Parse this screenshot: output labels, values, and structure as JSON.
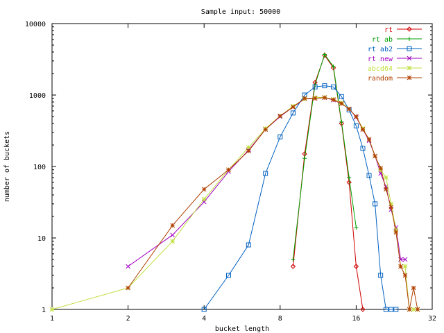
{
  "chart_data": {
    "type": "line",
    "title": "Sample input: 50000",
    "xlabel": "bucket length",
    "ylabel": "number of buckets",
    "xscale": "log2",
    "yscale": "log10",
    "xlim": [
      1,
      32
    ],
    "ylim": [
      1,
      10000
    ],
    "xticks": [
      1,
      2,
      4,
      8,
      16,
      32
    ],
    "xtick_labels": [
      "1",
      "2",
      "4",
      "8",
      "16",
      "32"
    ],
    "yticks": [
      1,
      10,
      100,
      1000,
      10000
    ],
    "ytick_labels": [
      "1",
      "10",
      "100",
      "1000",
      "10000"
    ],
    "grid": false,
    "legend_position": "top-right",
    "series": [
      {
        "name": "rt",
        "color": "#d00000",
        "marker": "diamond",
        "points": [
          [
            9,
            4
          ],
          [
            10,
            150
          ],
          [
            11,
            1500
          ],
          [
            12,
            3600
          ],
          [
            13,
            2400
          ],
          [
            14,
            400
          ],
          [
            15,
            60
          ],
          [
            16,
            4
          ],
          [
            17,
            1
          ]
        ]
      },
      {
        "name": "rt ab",
        "color": "#00a000",
        "marker": "plus",
        "points": [
          [
            9,
            5
          ],
          [
            10,
            130
          ],
          [
            11,
            1400
          ],
          [
            12,
            3700
          ],
          [
            13,
            2500
          ],
          [
            14,
            420
          ],
          [
            15,
            70
          ],
          [
            16,
            14
          ]
        ]
      },
      {
        "name": "rt ab2",
        "color": "#0060c0",
        "marker": "square",
        "points": [
          [
            4,
            1
          ],
          [
            5,
            3
          ],
          [
            6,
            8
          ],
          [
            7,
            80
          ],
          [
            8,
            260
          ],
          [
            9,
            560
          ],
          [
            10,
            1000
          ],
          [
            11,
            1300
          ],
          [
            12,
            1350
          ],
          [
            13,
            1300
          ],
          [
            14,
            950
          ],
          [
            15,
            620
          ],
          [
            16,
            370
          ],
          [
            17,
            180
          ],
          [
            18,
            75
          ],
          [
            19,
            30
          ],
          [
            20,
            3
          ],
          [
            21,
            1
          ],
          [
            22,
            1
          ],
          [
            23,
            1
          ]
        ]
      },
      {
        "name": "rt new",
        "color": "#a000c0",
        "marker": "cross",
        "points": [
          [
            2,
            4
          ],
          [
            3,
            11
          ],
          [
            4,
            32
          ],
          [
            5,
            85
          ],
          [
            6,
            170
          ],
          [
            7,
            330
          ],
          [
            8,
            500
          ],
          [
            9,
            680
          ],
          [
            10,
            880
          ],
          [
            11,
            900
          ],
          [
            12,
            920
          ],
          [
            13,
            850
          ],
          [
            14,
            760
          ],
          [
            15,
            640
          ],
          [
            16,
            490
          ],
          [
            17,
            330
          ],
          [
            18,
            230
          ],
          [
            19,
            140
          ],
          [
            20,
            80
          ],
          [
            21,
            52
          ],
          [
            22,
            25
          ],
          [
            23,
            14
          ],
          [
            24,
            5
          ],
          [
            25,
            5
          ]
        ]
      },
      {
        "name": "abcd64",
        "color": "#c0e040",
        "marker": "star",
        "points": [
          [
            1,
            1
          ],
          [
            2,
            2
          ],
          [
            3,
            9
          ],
          [
            4,
            35
          ],
          [
            5,
            90
          ],
          [
            6,
            185
          ],
          [
            7,
            340
          ],
          [
            8,
            510
          ],
          [
            9,
            700
          ],
          [
            10,
            880
          ],
          [
            11,
            920
          ],
          [
            12,
            930
          ],
          [
            13,
            870
          ],
          [
            14,
            780
          ],
          [
            15,
            640
          ],
          [
            16,
            500
          ],
          [
            17,
            340
          ],
          [
            18,
            240
          ],
          [
            19,
            140
          ],
          [
            20,
            90
          ],
          [
            21,
            70
          ],
          [
            22,
            30
          ],
          [
            23,
            13
          ],
          [
            24,
            4
          ],
          [
            25,
            4
          ],
          [
            26,
            1
          ],
          [
            27,
            1
          ],
          [
            28,
            1
          ]
        ]
      },
      {
        "name": "random",
        "color": "#b04000",
        "marker": "asterisk",
        "points": [
          [
            2,
            2
          ],
          [
            3,
            15
          ],
          [
            4,
            48
          ],
          [
            5,
            90
          ],
          [
            6,
            165
          ],
          [
            7,
            330
          ],
          [
            8,
            510
          ],
          [
            9,
            680
          ],
          [
            10,
            900
          ],
          [
            11,
            900
          ],
          [
            12,
            920
          ],
          [
            13,
            860
          ],
          [
            14,
            760
          ],
          [
            15,
            640
          ],
          [
            16,
            500
          ],
          [
            17,
            330
          ],
          [
            18,
            240
          ],
          [
            19,
            140
          ],
          [
            20,
            95
          ],
          [
            21,
            48
          ],
          [
            22,
            27
          ],
          [
            23,
            12
          ],
          [
            24,
            4
          ],
          [
            25,
            3
          ],
          [
            26,
            1
          ],
          [
            27,
            2
          ],
          [
            28,
            1
          ]
        ]
      }
    ]
  }
}
